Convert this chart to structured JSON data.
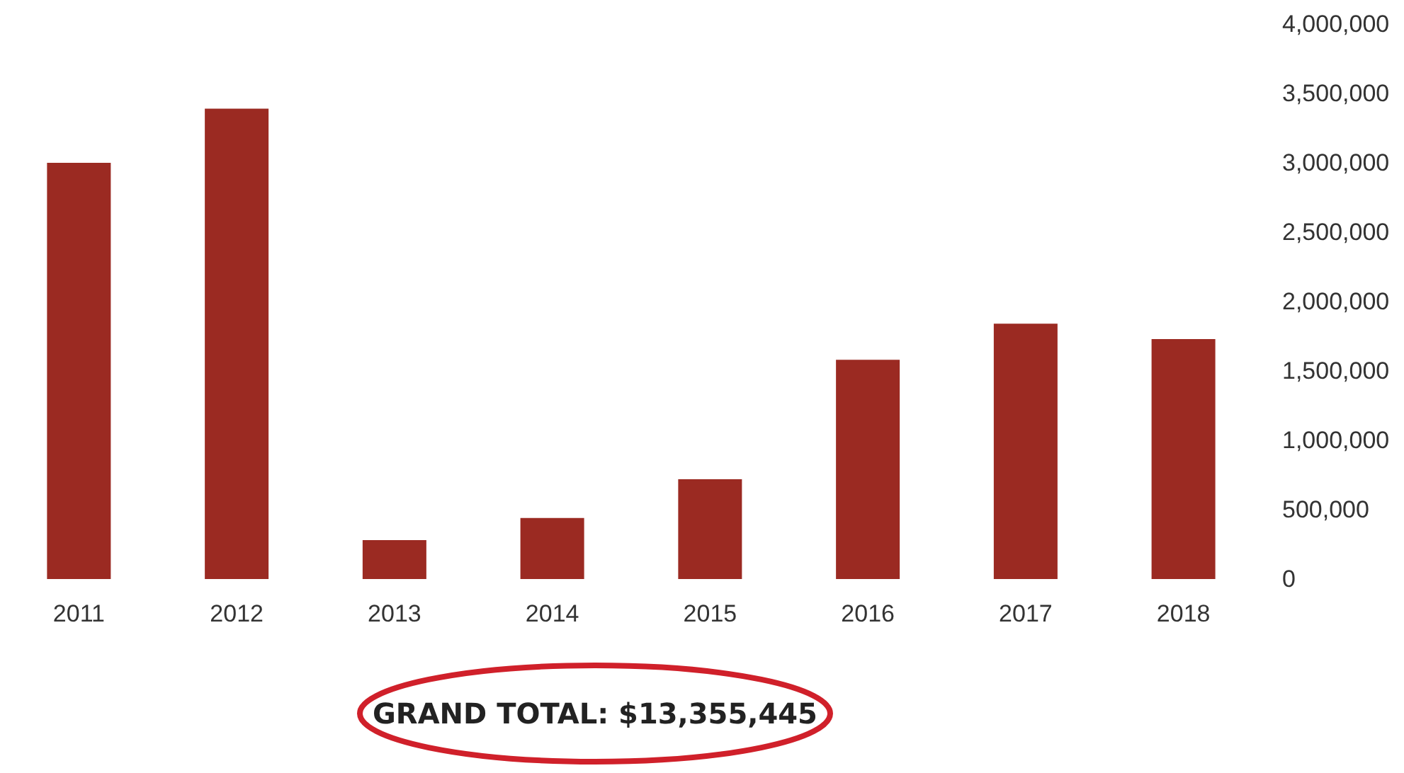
{
  "chart_data": {
    "type": "bar",
    "categories": [
      "2011",
      "2012",
      "2013",
      "2014",
      "2015",
      "2016",
      "2017",
      "2018"
    ],
    "values": [
      3000000,
      3390000,
      280000,
      440000,
      720000,
      1580000,
      1840000,
      1730000
    ],
    "color": "#9b2a22",
    "ylim": [
      0,
      4000000
    ],
    "yticks": [
      0,
      {
        "value": 500000,
        "label": "500,000"
      },
      {
        "value": 1000000,
        "label": "1,000,000"
      },
      {
        "value": 1500000,
        "label": "1,500,000"
      },
      {
        "value": 2000000,
        "label": "2,000,000"
      },
      {
        "value": 2500000,
        "label": "2,500,000"
      },
      {
        "value": 3000000,
        "label": "3,000,000"
      },
      {
        "value": 3500000,
        "label": "3,500,000"
      },
      {
        "value": 4000000,
        "label": "4,000,000"
      }
    ],
    "grid": false,
    "annotations": [
      "GRAND TOTAL: $13,355,445"
    ]
  }
}
